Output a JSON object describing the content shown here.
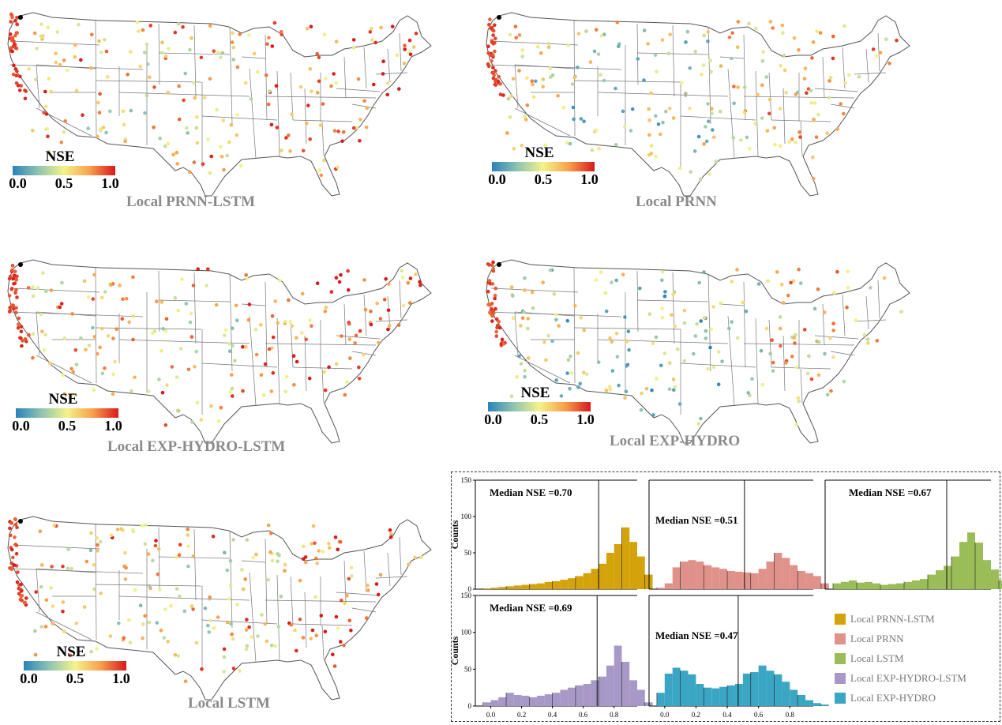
{
  "maps": [
    {
      "id": "prnn-lstm",
      "title": "Local PRNN-LSTM",
      "legend_title": "NSE",
      "legend_ticks": [
        "0.0",
        "0.5",
        "1.0"
      ],
      "nse_level": 0.7
    },
    {
      "id": "prnn",
      "title": "Local PRNN",
      "legend_title": "NSE",
      "legend_ticks": [
        "0.0",
        "0.5",
        "1.0"
      ],
      "nse_level": 0.5
    },
    {
      "id": "exp-hydro-lstm",
      "title": "Local EXP-HYDRO-LSTM",
      "legend_title": "NSE",
      "legend_ticks": [
        "0.0",
        "0.5",
        "1.0"
      ],
      "nse_level": 0.68
    },
    {
      "id": "exp-hydro",
      "title": "Local EXP-HYDRO",
      "legend_title": "NSE",
      "legend_ticks": [
        "0.0",
        "0.5",
        "1.0"
      ],
      "nse_level": 0.46
    },
    {
      "id": "lstm",
      "title": "Local LSTM",
      "legend_title": "NSE",
      "legend_ticks": [
        "0.0",
        "0.5",
        "1.0"
      ],
      "nse_level": 0.66
    }
  ],
  "chart_data": [
    {
      "type": "bar",
      "series_name": "Local PRNN-LSTM",
      "color": "#d4a30c",
      "annotation": "Median NSE =0.70",
      "median": 0.7,
      "ylabel": "Counts",
      "ylim": [
        0,
        150
      ],
      "yticks": [
        0,
        50,
        100,
        150
      ],
      "xlim": [
        -0.1,
        0.95
      ],
      "bin_start": -0.05,
      "bin_width": 0.05,
      "values": [
        1,
        2,
        3,
        4,
        5,
        6,
        7,
        8,
        10,
        11,
        13,
        15,
        18,
        22,
        28,
        35,
        50,
        62,
        85,
        65,
        45,
        20
      ]
    },
    {
      "type": "bar",
      "series_name": "Local PRNN",
      "color": "#e0918a",
      "annotation": "Median NSE =0.51",
      "median": 0.51,
      "ylabel": "",
      "ylim": [
        0,
        150
      ],
      "yticks": [],
      "xlim": [
        -0.1,
        0.95
      ],
      "bin_start": -0.05,
      "bin_width": 0.05,
      "values": [
        2,
        8,
        30,
        38,
        40,
        38,
        33,
        30,
        28,
        25,
        24,
        23,
        22,
        28,
        38,
        50,
        43,
        33,
        25,
        22,
        18,
        8
      ]
    },
    {
      "type": "bar",
      "series_name": "Local LSTM",
      "color": "#9bbd57",
      "annotation": "Median NSE =0.67",
      "median": 0.67,
      "ylabel": "",
      "ylim": [
        0,
        150
      ],
      "yticks": [],
      "xlim": [
        -0.1,
        0.95
      ],
      "bin_start": -0.05,
      "bin_width": 0.05,
      "values": [
        8,
        10,
        12,
        9,
        10,
        8,
        6,
        7,
        8,
        10,
        12,
        14,
        20,
        26,
        32,
        45,
        65,
        78,
        64,
        40,
        27,
        12
      ]
    },
    {
      "type": "bar",
      "series_name": "Local EXP-HYDRO-LSTM",
      "color": "#a798c8",
      "annotation": "Median NSE =0.69",
      "median": 0.69,
      "ylabel": "Counts",
      "ylim": [
        0,
        150
      ],
      "yticks": [
        0,
        50,
        100,
        150
      ],
      "xlim": [
        -0.1,
        0.95
      ],
      "bin_start": -0.05,
      "bin_width": 0.05,
      "values": [
        5,
        8,
        12,
        18,
        15,
        14,
        12,
        14,
        16,
        18,
        22,
        25,
        28,
        30,
        35,
        40,
        55,
        82,
        60,
        35,
        22,
        5
      ],
      "xticks": [
        "0.0",
        "0.2",
        "0.4",
        "0.6",
        "0.8"
      ]
    },
    {
      "type": "bar",
      "series_name": "Local EXP-HYDRO",
      "color": "#3aa6c4",
      "annotation": "Median NSE =0.47",
      "median": 0.47,
      "ylabel": "",
      "ylim": [
        0,
        150
      ],
      "yticks": [],
      "xlim": [
        -0.1,
        0.95
      ],
      "bin_start": -0.05,
      "bin_width": 0.05,
      "values": [
        18,
        44,
        52,
        48,
        43,
        30,
        25,
        24,
        26,
        28,
        30,
        44,
        46,
        55,
        48,
        43,
        33,
        22,
        15,
        8,
        4,
        2
      ],
      "xticks": [
        "0.0",
        "0.2",
        "0.4",
        "0.6",
        "0.8"
      ]
    }
  ],
  "legend": [
    {
      "label": "Local PRNN-LSTM",
      "color": "#d4a30c"
    },
    {
      "label": "Local PRNN",
      "color": "#e0918a"
    },
    {
      "label": "Local LSTM",
      "color": "#9bbd57"
    },
    {
      "label": "Local EXP-HYDRO-LSTM",
      "color": "#a798c8"
    },
    {
      "label": "Local EXP-HYDRO",
      "color": "#3aa6c4"
    }
  ]
}
